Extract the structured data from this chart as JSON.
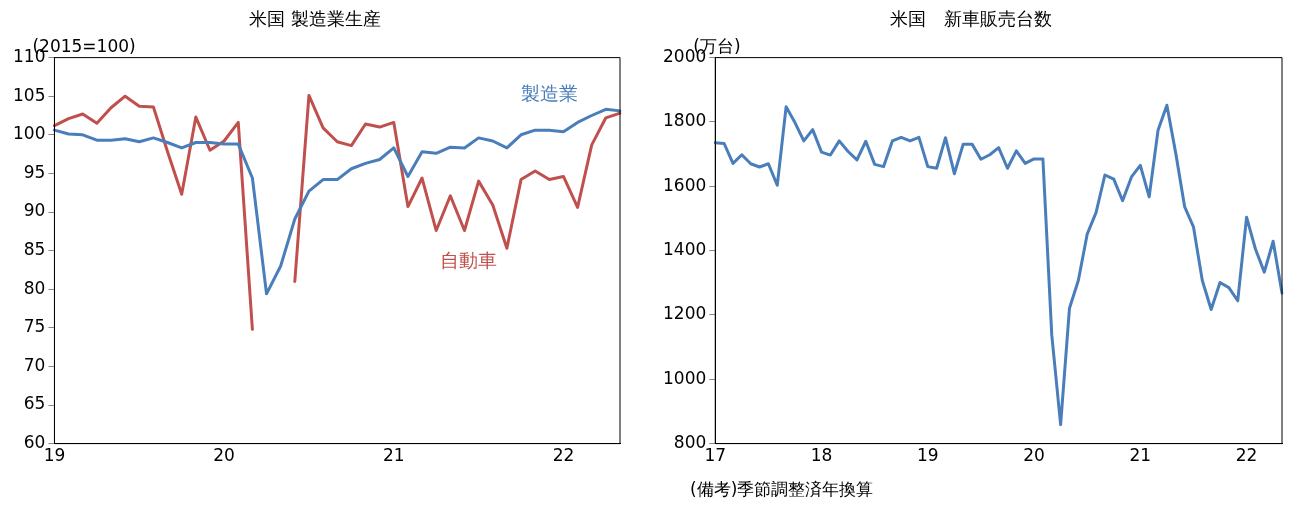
{
  "chart_data": [
    {
      "type": "line",
      "title": "米国 製造業生産",
      "ylabel": "(2015=100)",
      "categories": [
        "19",
        null,
        null,
        null,
        null,
        null,
        null,
        null,
        null,
        null,
        null,
        null,
        "20",
        null,
        null,
        null,
        null,
        null,
        null,
        null,
        null,
        null,
        null,
        null,
        "21",
        null,
        null,
        null,
        null,
        null,
        null,
        null,
        null,
        null,
        null,
        null,
        "22",
        null,
        null,
        null,
        null
      ],
      "series": [
        {
          "name": "製造業",
          "color": "#4a7ebb",
          "values": [
            100.6,
            100.1,
            100.0,
            99.3,
            99.3,
            99.5,
            99.1,
            99.6,
            99.0,
            98.3,
            99.0,
            99.0,
            98.8,
            98.8,
            94.4,
            79.4,
            83.0,
            89.1,
            92.7,
            94.2,
            94.2,
            95.6,
            96.3,
            96.8,
            98.3,
            94.6,
            97.8,
            97.6,
            98.4,
            98.3,
            99.6,
            99.2,
            98.3,
            100.0,
            100.6,
            100.6,
            100.4,
            101.6,
            102.5,
            103.3,
            103.1
          ]
        },
        {
          "name": "自動車",
          "color": "#c0504d",
          "values": [
            101.2,
            102.1,
            102.7,
            101.5,
            103.5,
            105.0,
            103.7,
            103.6,
            97.8,
            92.3,
            102.3,
            98.0,
            99.2,
            101.6,
            74.8,
            null,
            null,
            81.0,
            105.1,
            100.9,
            99.1,
            98.6,
            101.4,
            101.0,
            101.6,
            90.7,
            94.4,
            87.6,
            92.1,
            87.6,
            94.0,
            90.9,
            85.3,
            94.2,
            95.3,
            94.2,
            94.6,
            90.6,
            98.7,
            102.2,
            102.8
          ]
        }
      ],
      "ylim": [
        60,
        110
      ],
      "yticks": [
        60,
        65,
        70,
        75,
        80,
        85,
        90,
        95,
        100,
        105,
        110
      ],
      "grid": false,
      "legend": false,
      "marker": "none",
      "line_style": "solid"
    },
    {
      "type": "line",
      "title": "米国　新車販売台数",
      "ylabel": "(万台)",
      "annotations": [
        "(備考)季節調整済年換算"
      ],
      "categories": [
        "17",
        null,
        null,
        null,
        null,
        null,
        null,
        null,
        null,
        null,
        null,
        null,
        "18",
        null,
        null,
        null,
        null,
        null,
        null,
        null,
        null,
        null,
        null,
        null,
        "19",
        null,
        null,
        null,
        null,
        null,
        null,
        null,
        null,
        null,
        null,
        null,
        "20",
        null,
        null,
        null,
        null,
        null,
        null,
        null,
        null,
        null,
        null,
        null,
        "21",
        null,
        null,
        null,
        null,
        null,
        null,
        null,
        null,
        null,
        null,
        null,
        "22",
        null,
        null,
        null,
        null
      ],
      "series": [
        {
          "color": "#4a7ebb",
          "values": [
            1735,
            1733,
            1671,
            1698,
            1670,
            1660,
            1670,
            1603,
            1847,
            1798,
            1741,
            1776,
            1706,
            1697,
            1741,
            1708,
            1682,
            1740,
            1668,
            1661,
            1741,
            1752,
            1741,
            1752,
            1661,
            1656,
            1751,
            1639,
            1731,
            1731,
            1684,
            1698,
            1720,
            1656,
            1710,
            1671,
            1685,
            1685,
            1138,
            859,
            1221,
            1307,
            1451,
            1518,
            1635,
            1622,
            1555,
            1629,
            1665,
            1567,
            1774,
            1852,
            1703,
            1537,
            1474,
            1307,
            1217,
            1301,
            1285,
            1244,
            1504,
            1405,
            1333,
            1429,
            1268
          ]
        }
      ],
      "ylim": [
        800,
        2000
      ],
      "yticks": [
        800,
        1000,
        1200,
        1400,
        1600,
        1800,
        2000
      ],
      "grid": false,
      "legend": false,
      "marker": "none",
      "line_style": "solid"
    }
  ]
}
